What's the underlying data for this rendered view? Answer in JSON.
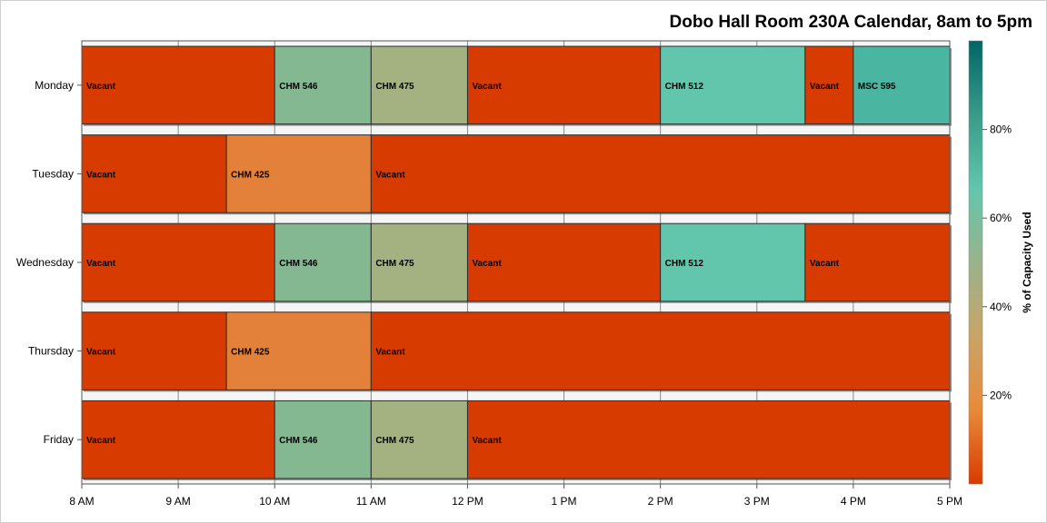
{
  "chart_data": {
    "type": "bar",
    "orientation": "horizontal-stacked-timeline",
    "title": "Dobo Hall Room 230A Calendar, 8am to 5pm",
    "categories": [
      "Monday",
      "Tuesday",
      "Wednesday",
      "Thursday",
      "Friday"
    ],
    "x_ticks": [
      "8 AM",
      "9 AM",
      "10 AM",
      "11 AM",
      "12 PM",
      "1 PM",
      "2 PM",
      "3 PM",
      "4 PM",
      "5 PM"
    ],
    "xlim": [
      8,
      17
    ],
    "grid": true,
    "legend": "right",
    "colorbar": {
      "title": "% of Capacity Used",
      "ticks": [
        "20%",
        "40%",
        "60%",
        "80%"
      ],
      "range": [
        0,
        100
      ],
      "colors": [
        "#d83b00",
        "#e88a3a",
        "#c9a468",
        "#9ab38c",
        "#62c6ac",
        "#3a9a8a",
        "#006666"
      ]
    },
    "series": [
      {
        "day": "Monday",
        "events": [
          {
            "label": "Vacant",
            "start": 8,
            "end": 10,
            "capacity": 0
          },
          {
            "label": "CHM 546",
            "start": 10,
            "end": 11,
            "capacity": 55
          },
          {
            "label": "CHM 475",
            "start": 11,
            "end": 12,
            "capacity": 50
          },
          {
            "label": "Vacant",
            "start": 12,
            "end": 14,
            "capacity": 0
          },
          {
            "label": "CHM 512",
            "start": 14,
            "end": 15.5,
            "capacity": 66
          },
          {
            "label": "Vacant",
            "start": 15.5,
            "end": 16,
            "capacity": 0
          },
          {
            "label": "MSC 595",
            "start": 16,
            "end": 17,
            "capacity": 75
          }
        ]
      },
      {
        "day": "Tuesday",
        "events": [
          {
            "label": "Vacant",
            "start": 8,
            "end": 9.5,
            "capacity": 0
          },
          {
            "label": "CHM 425",
            "start": 9.5,
            "end": 11,
            "capacity": 22
          },
          {
            "label": "Vacant",
            "start": 11,
            "end": 17,
            "capacity": 0
          }
        ]
      },
      {
        "day": "Wednesday",
        "events": [
          {
            "label": "Vacant",
            "start": 8,
            "end": 10,
            "capacity": 0
          },
          {
            "label": "CHM 546",
            "start": 10,
            "end": 11,
            "capacity": 55
          },
          {
            "label": "CHM 475",
            "start": 11,
            "end": 12,
            "capacity": 50
          },
          {
            "label": "Vacant",
            "start": 12,
            "end": 14,
            "capacity": 0
          },
          {
            "label": "CHM 512",
            "start": 14,
            "end": 15.5,
            "capacity": 66
          },
          {
            "label": "Vacant",
            "start": 15.5,
            "end": 17,
            "capacity": 0
          }
        ]
      },
      {
        "day": "Thursday",
        "events": [
          {
            "label": "Vacant",
            "start": 8,
            "end": 9.5,
            "capacity": 0
          },
          {
            "label": "CHM 425",
            "start": 9.5,
            "end": 11,
            "capacity": 22
          },
          {
            "label": "Vacant",
            "start": 11,
            "end": 17,
            "capacity": 0
          }
        ]
      },
      {
        "day": "Friday",
        "events": [
          {
            "label": "Vacant",
            "start": 8,
            "end": 10,
            "capacity": 0
          },
          {
            "label": "CHM 546",
            "start": 10,
            "end": 11,
            "capacity": 55
          },
          {
            "label": "CHM 475",
            "start": 11,
            "end": 12,
            "capacity": 50
          },
          {
            "label": "Vacant",
            "start": 12,
            "end": 17,
            "capacity": 0
          }
        ]
      }
    ]
  },
  "colors": {
    "vacant": "#d83b00",
    "chm_425": "#e3803a",
    "chm_475": "#a4b282",
    "chm_546": "#84b891",
    "chm_512": "#62c6ac",
    "msc_595": "#4ab5a0"
  }
}
